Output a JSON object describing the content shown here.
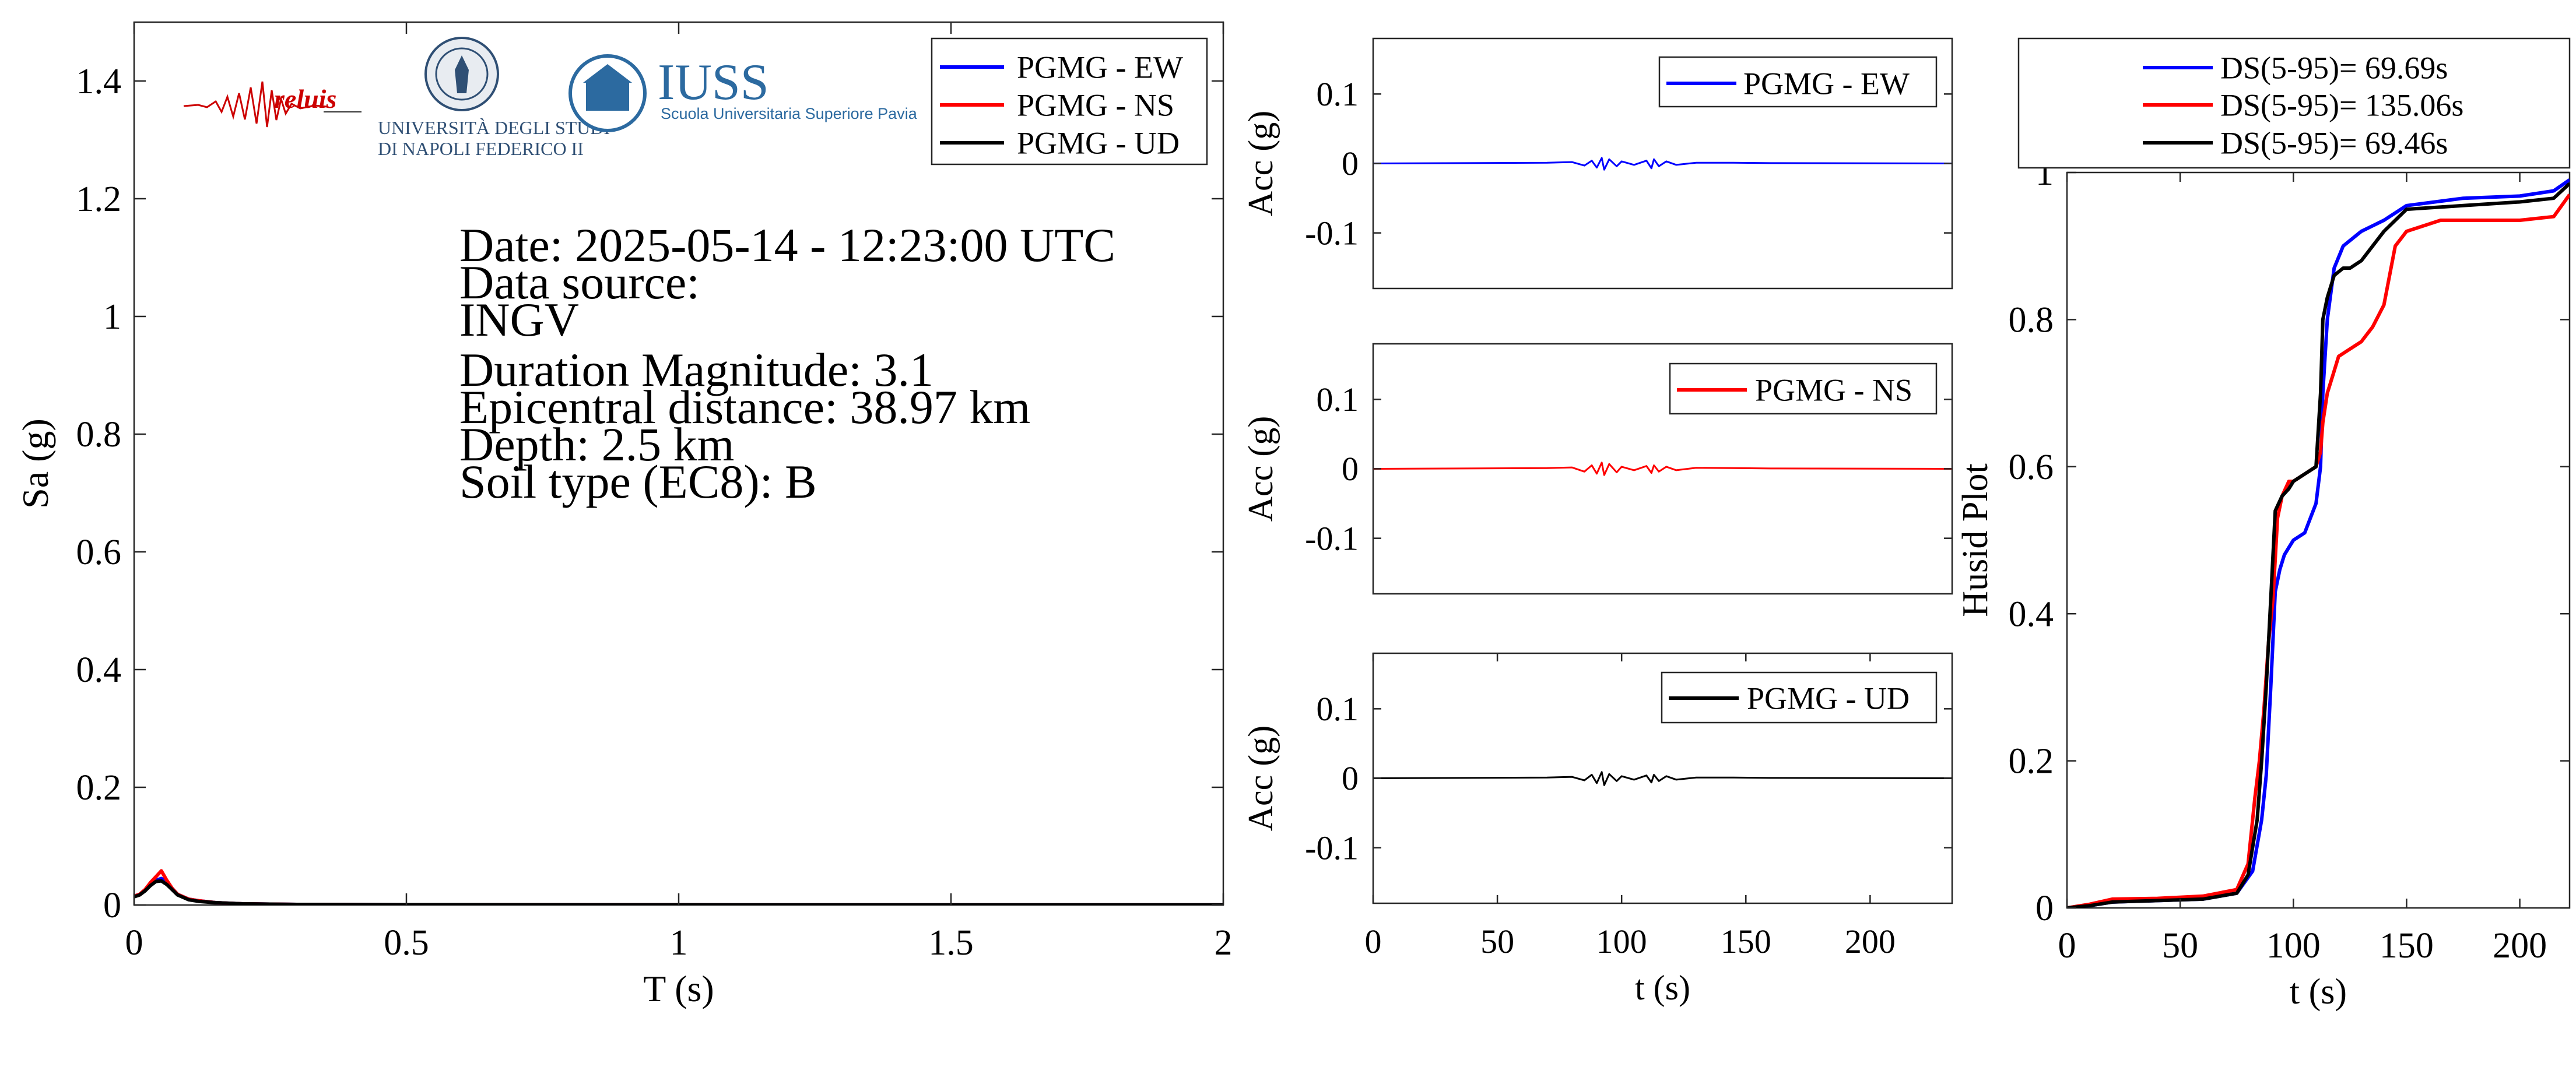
{
  "colors": {
    "ew": "#0000ff",
    "ns": "#ff0000",
    "ud": "#000000"
  },
  "logos": {
    "reluis": "reluis",
    "unina": [
      "UNIVERSITÀ DEGLI STUDI",
      "DI NAPOLI FEDERICO II"
    ],
    "iuss": {
      "name": "IUSS",
      "subtitle": "Scuola Universitaria Superiore Pavia"
    }
  },
  "info": {
    "date": "Date: 2025-05-14 - 12:23:00 UTC",
    "source_label": "Data source:",
    "source": "INGV",
    "magnitude": "Duration Magnitude: 3.1",
    "distance": "Epicentral distance: 38.97 km",
    "depth": "Depth: 2.5 km",
    "soil": "Soil type (EC8): B"
  },
  "chart_data": [
    {
      "type": "line",
      "id": "spectrum",
      "xlabel": "T (s)",
      "ylabel": "Sa (g)",
      "xlim": [
        0,
        2
      ],
      "ylim": [
        0,
        1.5
      ],
      "xticks": [
        0,
        0.5,
        1,
        1.5,
        2
      ],
      "yticks": [
        0,
        0.2,
        0.4,
        0.6,
        0.8,
        1,
        1.2,
        1.4
      ],
      "grid": false,
      "legend": "top-right",
      "series": [
        {
          "name": "PGMG - EW",
          "color": "#0000ff",
          "x": [
            0,
            0.01,
            0.02,
            0.03,
            0.04,
            0.05,
            0.06,
            0.07,
            0.08,
            0.1,
            0.12,
            0.15,
            0.2,
            0.3,
            0.5,
            1,
            1.5,
            2
          ],
          "y": [
            0.015,
            0.018,
            0.025,
            0.035,
            0.042,
            0.045,
            0.038,
            0.028,
            0.018,
            0.01,
            0.007,
            0.004,
            0.002,
            0.001,
            0.0005,
            0.0002,
            0.0001,
            0.0001
          ]
        },
        {
          "name": "PGMG - NS",
          "color": "#ff0000",
          "x": [
            0,
            0.01,
            0.02,
            0.03,
            0.04,
            0.05,
            0.06,
            0.07,
            0.08,
            0.1,
            0.12,
            0.15,
            0.2,
            0.3,
            0.5,
            1,
            1.5,
            2
          ],
          "y": [
            0.015,
            0.018,
            0.026,
            0.038,
            0.048,
            0.058,
            0.042,
            0.028,
            0.018,
            0.01,
            0.007,
            0.004,
            0.002,
            0.001,
            0.0005,
            0.0002,
            0.0001,
            0.0001
          ]
        },
        {
          "name": "PGMG - UD",
          "color": "#000000",
          "x": [
            0,
            0.01,
            0.02,
            0.03,
            0.04,
            0.05,
            0.06,
            0.07,
            0.08,
            0.1,
            0.12,
            0.15,
            0.2,
            0.3,
            0.5,
            1,
            1.5,
            2
          ],
          "y": [
            0.014,
            0.017,
            0.024,
            0.033,
            0.04,
            0.041,
            0.035,
            0.026,
            0.017,
            0.009,
            0.006,
            0.004,
            0.002,
            0.001,
            0.0005,
            0.0002,
            0.0001,
            0.0001
          ]
        }
      ]
    },
    {
      "type": "line",
      "id": "acc-ew",
      "xlabel": "",
      "ylabel": "Acc (g)",
      "xlim": [
        0,
        233
      ],
      "ylim": [
        -0.18,
        0.18
      ],
      "yticks": [
        -0.1,
        0,
        0.1
      ],
      "ytick_labels": [
        "-0.1",
        "0",
        "0.1"
      ],
      "grid": false,
      "legend": "top-right",
      "series": [
        {
          "name": "PGMG - EW",
          "color": "#0000ff",
          "x": [
            0,
            70,
            80,
            85,
            88,
            90,
            92,
            93,
            95,
            98,
            100,
            105,
            110,
            112,
            113,
            115,
            118,
            122,
            130,
            145,
            160,
            233
          ],
          "y": [
            0,
            0.001,
            0.002,
            -0.003,
            0.004,
            -0.006,
            0.008,
            -0.009,
            0.006,
            -0.004,
            0.003,
            -0.002,
            0.004,
            -0.007,
            0.006,
            -0.004,
            0.003,
            -0.002,
            0.001,
            0.001,
            0.0005,
            0
          ]
        }
      ]
    },
    {
      "type": "line",
      "id": "acc-ns",
      "xlabel": "",
      "ylabel": "Acc (g)",
      "xlim": [
        0,
        233
      ],
      "ylim": [
        -0.18,
        0.18
      ],
      "yticks": [
        -0.1,
        0,
        0.1
      ],
      "ytick_labels": [
        "-0.1",
        "0",
        "0.1"
      ],
      "grid": false,
      "legend": "top-right",
      "series": [
        {
          "name": "PGMG - NS",
          "color": "#ff0000",
          "x": [
            0,
            70,
            80,
            85,
            88,
            90,
            92,
            93,
            95,
            98,
            100,
            105,
            110,
            112,
            113,
            115,
            118,
            122,
            130,
            145,
            160,
            233
          ],
          "y": [
            0,
            0.001,
            0.002,
            -0.004,
            0.005,
            -0.007,
            0.009,
            -0.009,
            0.007,
            -0.005,
            0.003,
            -0.002,
            0.004,
            -0.006,
            0.005,
            -0.004,
            0.003,
            -0.002,
            0.0015,
            0.001,
            0.0005,
            0
          ]
        }
      ]
    },
    {
      "type": "line",
      "id": "acc-ud",
      "xlabel": "t (s)",
      "ylabel": "Acc (g)",
      "xlim": [
        0,
        233
      ],
      "ylim": [
        -0.18,
        0.18
      ],
      "xticks": [
        0,
        50,
        100,
        150,
        200
      ],
      "yticks": [
        -0.1,
        0,
        0.1
      ],
      "ytick_labels": [
        "-0.1",
        "0",
        "0.1"
      ],
      "grid": false,
      "legend": "top-right",
      "series": [
        {
          "name": "PGMG - UD",
          "color": "#000000",
          "x": [
            0,
            70,
            80,
            85,
            88,
            90,
            92,
            93,
            95,
            98,
            100,
            105,
            110,
            112,
            113,
            115,
            118,
            122,
            130,
            145,
            160,
            233
          ],
          "y": [
            0,
            0.001,
            0.002,
            -0.003,
            0.005,
            -0.007,
            0.009,
            -0.01,
            0.006,
            -0.004,
            0.003,
            -0.002,
            0.004,
            -0.006,
            0.005,
            -0.004,
            0.003,
            -0.002,
            0.001,
            0.001,
            0.0005,
            0
          ]
        }
      ]
    },
    {
      "type": "line",
      "id": "husid",
      "xlabel": "t (s)",
      "ylabel": "Husid Plot",
      "xlim": [
        0,
        222
      ],
      "ylim": [
        0,
        1
      ],
      "xticks": [
        0,
        50,
        100,
        150,
        200
      ],
      "yticks": [
        0,
        0.2,
        0.4,
        0.6,
        0.8,
        1
      ],
      "grid": false,
      "legend": "top-outside",
      "series": [
        {
          "name": "DS(5-95)= 69.69s",
          "color": "#0000ff",
          "x": [
            0,
            10,
            20,
            40,
            60,
            75,
            82,
            86,
            88,
            90,
            92,
            94,
            96,
            98,
            100,
            105,
            110,
            112,
            113,
            115,
            118,
            122,
            130,
            140,
            150,
            175,
            200,
            215,
            222
          ],
          "y": [
            0,
            0.003,
            0.008,
            0.01,
            0.012,
            0.02,
            0.05,
            0.12,
            0.18,
            0.3,
            0.43,
            0.46,
            0.48,
            0.49,
            0.5,
            0.51,
            0.55,
            0.6,
            0.7,
            0.8,
            0.87,
            0.9,
            0.92,
            0.935,
            0.955,
            0.965,
            0.968,
            0.975,
            0.99
          ]
        },
        {
          "name": "DS(5-95)= 135.06s",
          "color": "#ff0000",
          "x": [
            0,
            10,
            20,
            40,
            60,
            75,
            80,
            83,
            85,
            87,
            89,
            91,
            93,
            95,
            98,
            100,
            105,
            110,
            112,
            113,
            115,
            118,
            120,
            125,
            130,
            135,
            140,
            145,
            150,
            165,
            180,
            200,
            215,
            222
          ],
          "y": [
            0,
            0.005,
            0.012,
            0.013,
            0.016,
            0.025,
            0.06,
            0.15,
            0.2,
            0.27,
            0.36,
            0.42,
            0.53,
            0.56,
            0.58,
            0.58,
            0.59,
            0.6,
            0.62,
            0.66,
            0.7,
            0.73,
            0.75,
            0.76,
            0.77,
            0.79,
            0.82,
            0.9,
            0.92,
            0.935,
            0.935,
            0.935,
            0.94,
            0.97
          ]
        },
        {
          "name": "DS(5-95)= 69.46s",
          "color": "#000000",
          "x": [
            0,
            10,
            20,
            40,
            60,
            75,
            80,
            84,
            86,
            88,
            90,
            92,
            95,
            98,
            100,
            105,
            110,
            112,
            113,
            115,
            118,
            122,
            125,
            130,
            140,
            150,
            175,
            200,
            215,
            222
          ],
          "y": [
            0,
            0.003,
            0.008,
            0.01,
            0.012,
            0.02,
            0.045,
            0.12,
            0.2,
            0.3,
            0.42,
            0.54,
            0.56,
            0.57,
            0.58,
            0.59,
            0.6,
            0.7,
            0.8,
            0.83,
            0.86,
            0.87,
            0.87,
            0.88,
            0.92,
            0.95,
            0.955,
            0.96,
            0.965,
            0.985
          ]
        }
      ]
    }
  ]
}
